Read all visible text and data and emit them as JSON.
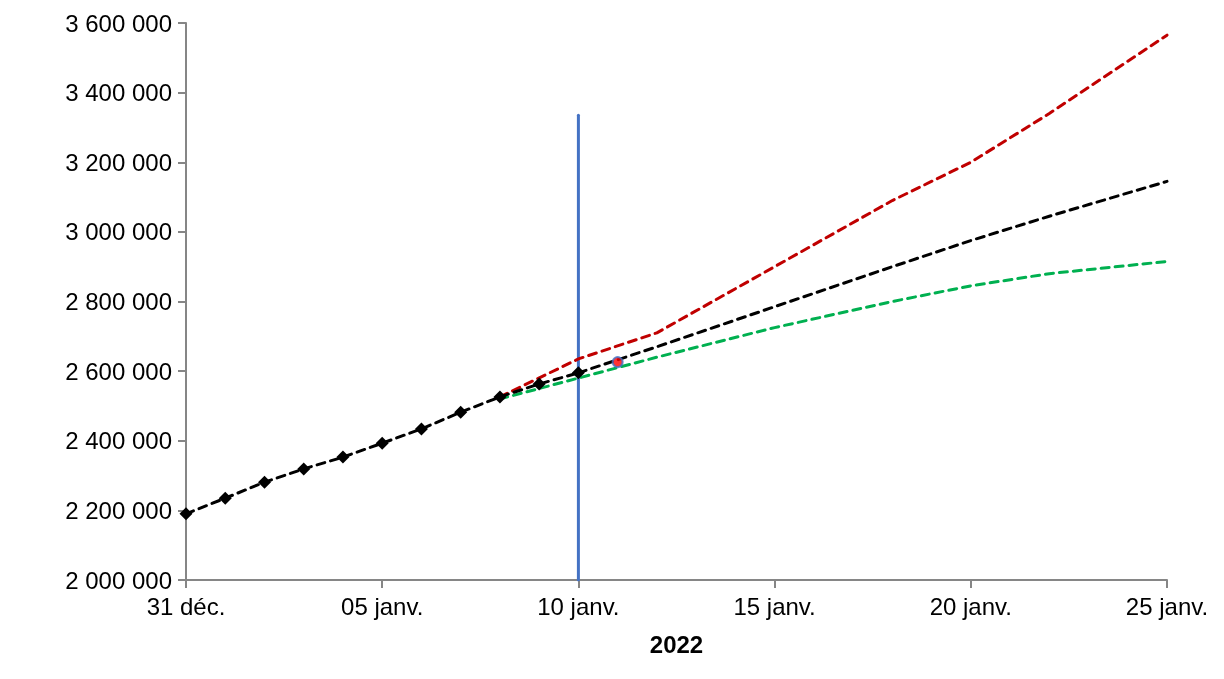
{
  "chart_data": {
    "type": "line",
    "xlabel": "2022",
    "xlim": [
      "2021-12-31",
      "2022-01-25"
    ],
    "xticks": [
      {
        "value": "2021-12-31",
        "label": "31 déc."
      },
      {
        "value": "2022-01-05",
        "label": "05 janv."
      },
      {
        "value": "2022-01-10",
        "label": "10 janv."
      },
      {
        "value": "2022-01-15",
        "label": "15 janv."
      },
      {
        "value": "2022-01-20",
        "label": "20 janv."
      },
      {
        "value": "2022-01-25",
        "label": "25 janv."
      }
    ],
    "ylim": [
      2000000,
      3600000
    ],
    "yticks": [
      {
        "value": 2000000,
        "label": "2 000 000"
      },
      {
        "value": 2200000,
        "label": "2 200 000"
      },
      {
        "value": 2400000,
        "label": "2 400 000"
      },
      {
        "value": 2600000,
        "label": "2 600 000"
      },
      {
        "value": 2800000,
        "label": "2 800 000"
      },
      {
        "value": 3000000,
        "label": "3 000 000"
      },
      {
        "value": 3200000,
        "label": "3 200 000"
      },
      {
        "value": 3400000,
        "label": "3 400 000"
      },
      {
        "value": 3600000,
        "label": "3 600 000"
      }
    ],
    "grid": false,
    "series": [
      {
        "color": "#4472c4",
        "line_style": "solid",
        "marker": "none",
        "x": [
          "2022-01-10",
          "2022-01-10"
        ],
        "values": [
          2000000,
          3335000
        ]
      },
      {
        "color": "#c00000",
        "line_style": "dashed",
        "marker": "none",
        "x": [
          "2022-01-08",
          "2022-01-10",
          "2022-01-12",
          "2022-01-15",
          "2022-01-18",
          "2022-01-20",
          "2022-01-22",
          "2022-01-25"
        ],
        "values": [
          2526000,
          2635000,
          2710000,
          2900000,
          3090000,
          3200000,
          3340000,
          3565000
        ]
      },
      {
        "color": "#00b050",
        "line_style": "dashed",
        "marker": "none",
        "x": [
          "2022-01-08",
          "2022-01-10",
          "2022-01-12",
          "2022-01-15",
          "2022-01-18",
          "2022-01-20",
          "2022-01-22",
          "2022-01-25"
        ],
        "values": [
          2520000,
          2580000,
          2640000,
          2725000,
          2800000,
          2845000,
          2880000,
          2915000
        ]
      },
      {
        "color": "#000000",
        "line_style": "dashed",
        "marker": "none",
        "x": [
          "2022-01-10",
          "2022-01-12",
          "2022-01-15",
          "2022-01-18",
          "2022-01-20",
          "2022-01-22",
          "2022-01-25"
        ],
        "values": [
          2595000,
          2670000,
          2785000,
          2900000,
          2975000,
          3045000,
          3145000
        ]
      },
      {
        "color": "#000000",
        "line_style": "dashed",
        "marker": "diamond",
        "x": [
          "2021-12-31",
          "2022-01-01",
          "2022-01-02",
          "2022-01-03",
          "2022-01-04",
          "2022-01-05",
          "2022-01-06",
          "2022-01-07",
          "2022-01-08",
          "2022-01-09",
          "2022-01-10"
        ],
        "values": [
          2190000,
          2235000,
          2281000,
          2319000,
          2353000,
          2393000,
          2434000,
          2482000,
          2526000,
          2563000,
          2595000
        ]
      },
      {
        "type": "scatter",
        "color": "#ff0000",
        "marker": "circle",
        "x": [
          "2022-01-11"
        ],
        "values": [
          2626000
        ]
      }
    ]
  }
}
